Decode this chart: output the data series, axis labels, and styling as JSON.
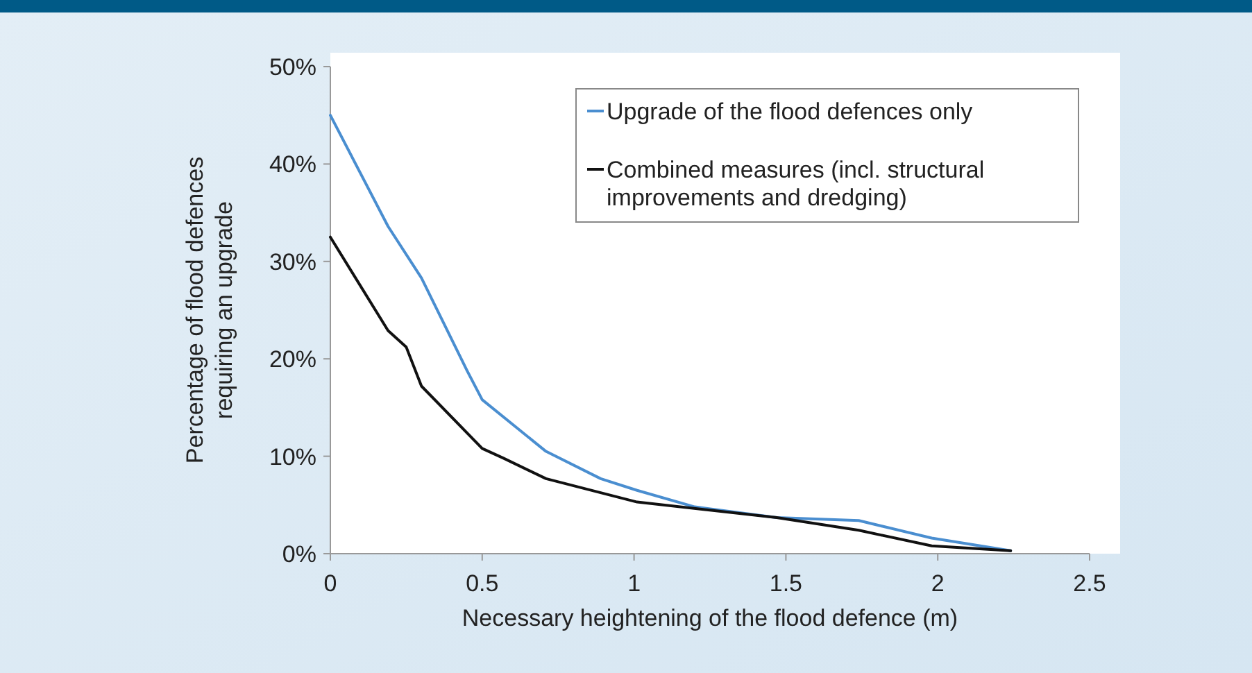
{
  "chart_data": {
    "type": "line",
    "xlabel": "Necessary heightening of the flood defence (m)",
    "ylabel": "Percentage of flood defences requiring an upgrade",
    "xlim": [
      0,
      2.5
    ],
    "xticks": [
      0,
      0.5,
      1,
      1.5,
      2,
      2.5
    ],
    "ylim": [
      0,
      50
    ],
    "yticks": [
      {
        "value": 0,
        "label": "0%"
      },
      {
        "value": 10,
        "label": "10%"
      },
      {
        "value": 20,
        "label": "20%"
      },
      {
        "value": 30,
        "label": "30%"
      },
      {
        "value": 40,
        "label": "40%"
      },
      {
        "value": 50,
        "label": "50%"
      }
    ],
    "grid": false,
    "legend": "top right",
    "line_style": "solid",
    "marker": "none",
    "series": [
      {
        "name": "Upgrade of the flood defences only",
        "color": "#4a8ed0",
        "x": [
          0,
          0.19,
          0.3,
          0.45,
          0.5,
          0.71,
          0.89,
          1.01,
          1.2,
          1.47,
          1.74,
          1.98,
          2.24
        ],
        "values": [
          45,
          33.6,
          28.3,
          18.8,
          15.8,
          10.5,
          7.7,
          6.5,
          4.8,
          3.7,
          3.4,
          1.6,
          0.3
        ]
      },
      {
        "name": "Combined measures (incl. structural improvements and dredging)",
        "color": "#111111",
        "x": [
          0,
          0.19,
          0.25,
          0.3,
          0.5,
          0.57,
          0.71,
          1.01,
          1.47,
          1.74,
          1.98,
          2.24
        ],
        "values": [
          32.5,
          22.9,
          21.2,
          17.2,
          10.8,
          9.8,
          7.7,
          5.3,
          3.7,
          2.4,
          0.8,
          0.3
        ]
      }
    ]
  }
}
